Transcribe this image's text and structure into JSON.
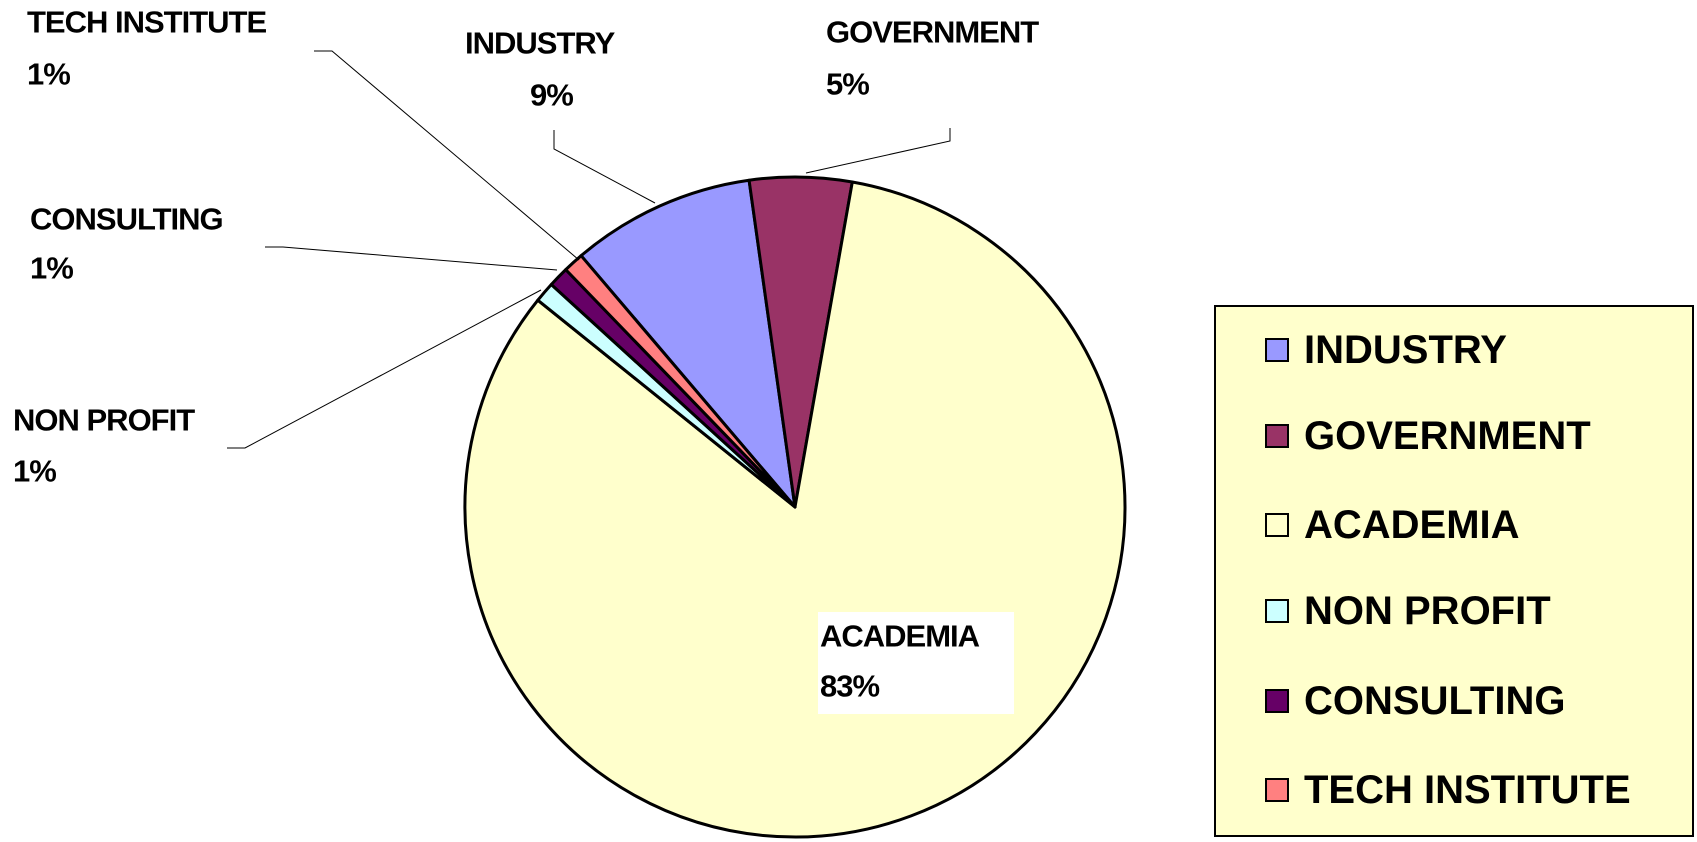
{
  "chart_data": {
    "type": "pie",
    "categories": [
      "INDUSTRY",
      "GOVERNMENT",
      "ACADEMIA",
      "NON PROFIT",
      "CONSULTING",
      "TECH INSTITUTE"
    ],
    "values": [
      9,
      5,
      83,
      1,
      1,
      1
    ],
    "value_labels": [
      "9%",
      "5%",
      "83%",
      "1%",
      "1%",
      "1%"
    ],
    "colors": [
      "#9999ff",
      "#993366",
      "#ffffcc",
      "#ccffff",
      "#660066",
      "#ff8080"
    ],
    "legend": "right"
  }
}
